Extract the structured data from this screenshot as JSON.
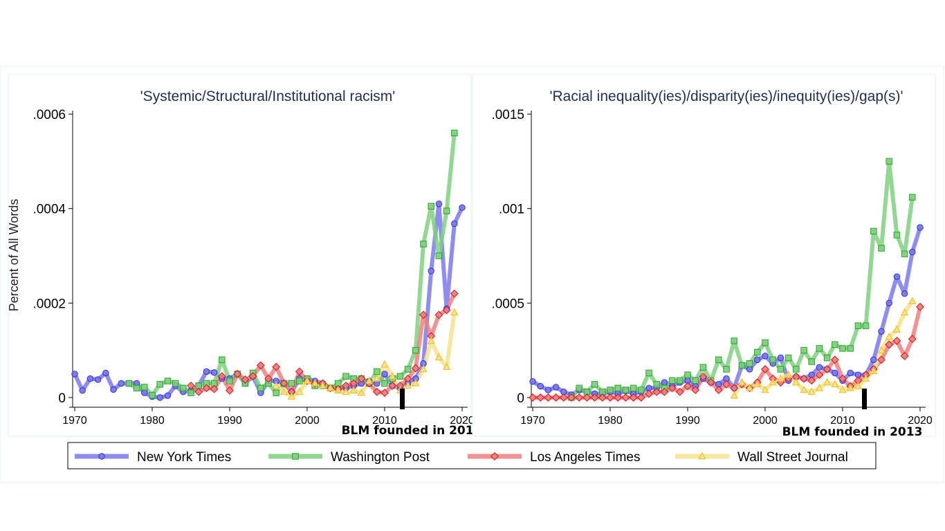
{
  "colors": {
    "nyt": "#7b78f0",
    "wp": "#7fd17f",
    "lat": "#f07f7f",
    "wsj": "#f9e08c",
    "nyt_marker": "#3438d4",
    "wp_marker": "#2fa62f",
    "lat_marker": "#dc1c1c",
    "wsj_marker": "#e8c420"
  },
  "annotation": {
    "blm_label": "BLM founded in 2013",
    "blm_year": 2013
  },
  "y_axis_title": "Percent of All Words",
  "legend": [
    "New York Times",
    "Washington Post",
    "Los Angeles Times",
    "Wall Street Journal"
  ],
  "chart_data": [
    {
      "type": "line",
      "title": "'Systemic/Structural/Institutional racism'",
      "ylabel": "Percent of All Words",
      "xlim": [
        1970,
        2020
      ],
      "ylim": [
        0,
        0.0006
      ],
      "x_ticks": [
        1970,
        1980,
        1990,
        2000,
        2010,
        2020
      ],
      "x_tick_labels": [
        "1970",
        "1980",
        "1990",
        "2000",
        "2010",
        "2020"
      ],
      "y_ticks": [
        0,
        0.0002,
        0.0004,
        0.0006
      ],
      "y_tick_labels": [
        "0",
        ".0002",
        ".0004",
        ".0006"
      ],
      "legend_position": "bottom",
      "series": [
        {
          "name": "New York Times",
          "marker": "circle",
          "start_year": 1970,
          "values": [
            5e-05,
            1.5e-05,
            4e-05,
            3.8e-05,
            5.2e-05,
            1.7e-05,
            3e-05,
            3e-05,
            3e-05,
            1e-05,
            2e-06,
            0.0,
            4e-06,
            2.5e-05,
            1.2e-05,
            1.5e-05,
            2.5e-05,
            5.5e-05,
            5.3e-05,
            4e-05,
            4e-05,
            5e-05,
            3e-05,
            4.5e-05,
            1e-05,
            3.5e-05,
            3.5e-05,
            3e-05,
            1.2e-05,
            4e-05,
            4e-05,
            3.5e-05,
            3e-05,
            2e-05,
            1.8e-05,
            2e-05,
            2.5e-05,
            3e-05,
            3.5e-05,
            3e-05,
            5e-05,
            2.5e-05,
            2e-05,
            3e-05,
            4e-05,
            7.2e-05,
            0.000268,
            0.00041,
            0.000188,
            0.000368,
            0.000402
          ]
        },
        {
          "name": "Washington Post",
          "marker": "square",
          "start_year": 1977,
          "values": [
            3e-05,
            2e-05,
            2.2e-05,
            5e-06,
            2.8e-05,
            3.5e-05,
            3e-05,
            2e-05,
            1e-05,
            2.5e-05,
            3e-05,
            3e-05,
            8e-05,
            3.5e-05,
            5e-05,
            3e-05,
            5.2e-05,
            2e-05,
            3e-05,
            1e-05,
            3e-05,
            3e-05,
            3.5e-05,
            4e-05,
            2.5e-05,
            2.5e-05,
            2e-05,
            3e-05,
            4.5e-05,
            4e-05,
            4e-05,
            3e-05,
            5.5e-05,
            3e-05,
            4e-05,
            4.5e-05,
            6e-05,
            0.0001,
            0.000325,
            0.000405,
            0.0003,
            0.000395,
            0.00056
          ]
        },
        {
          "name": "Los Angeles Times",
          "marker": "diamond",
          "start_year": 1985,
          "values": [
            2.5e-05,
            1.2e-05,
            2e-05,
            1.8e-05,
            4.5e-05,
            1.5e-05,
            5e-05,
            3.8e-05,
            4.5e-05,
            6.8e-05,
            4e-05,
            6.5e-05,
            3e-05,
            1.2e-05,
            5.5e-05,
            3.5e-05,
            3e-05,
            3e-05,
            2e-05,
            1.8e-05,
            2.5e-05,
            3e-05,
            4e-05,
            3e-05,
            1.2e-05,
            1e-05,
            2.5e-05,
            2.5e-05,
            4e-05,
            6.2e-05,
            0.000175,
            0.00013,
            0.000175,
            0.000185,
            0.00022
          ]
        },
        {
          "name": "Wall Street Journal",
          "marker": "triangle",
          "start_year": 1996,
          "values": [
            2.5e-05,
            1.2e-05,
            2e-06,
            1.2e-05,
            3.5e-05,
            3e-05,
            2.5e-05,
            2e-05,
            1.5e-05,
            1.2e-05,
            1.5e-05,
            1e-05,
            3.5e-05,
            4e-05,
            7e-05,
            4.5e-05,
            1.5e-05,
            2.5e-05,
            3e-05,
            6e-05,
            0.00012,
            8.5e-05,
            6.5e-05,
            0.00018
          ]
        }
      ]
    },
    {
      "type": "line",
      "title": "'Racial inequality(ies)/disparity(ies)/inequity(ies)/gap(s)'",
      "ylabel": "",
      "xlim": [
        1970,
        2020
      ],
      "ylim": [
        0,
        0.0015
      ],
      "x_ticks": [
        1970,
        1980,
        1990,
        2000,
        2010,
        2020
      ],
      "x_tick_labels": [
        "1970",
        "1980",
        "1990",
        "2000",
        "2010",
        "2020"
      ],
      "y_ticks": [
        0,
        0.0005,
        0.001,
        0.0015
      ],
      "y_tick_labels": [
        "0",
        ".0005",
        ".001",
        ".0015"
      ],
      "legend_position": "bottom",
      "series": [
        {
          "name": "New York Times",
          "marker": "circle",
          "start_year": 1970,
          "values": [
            8.5e-05,
            6e-05,
            4e-05,
            5.5e-05,
            3e-05,
            1.5e-05,
            4e-05,
            3e-05,
            2e-05,
            2e-05,
            3e-05,
            2e-05,
            3.5e-05,
            2e-05,
            3e-05,
            5e-05,
            5e-05,
            8e-05,
            6e-05,
            8e-05,
            9e-05,
            6e-05,
            0.0001,
            8e-05,
            7e-05,
            0.0001,
            5e-05,
            0.00017,
            0.00015,
            0.0002,
            0.00022,
            0.00018,
            0.00021,
            9e-05,
            0.00011,
            0.0001,
            0.00012,
            0.00016,
            0.00015,
            0.00013,
            9e-05,
            0.00013,
            0.00012,
            0.00012,
            0.0002,
            0.00035,
            0.0005,
            0.00064,
            0.00055,
            0.00077,
            0.0009
          ]
        },
        {
          "name": "Washington Post",
          "marker": "square",
          "start_year": 1975,
          "values": [
            0.0,
            5e-05,
            3e-05,
            7e-05,
            3e-05,
            4e-05,
            5e-05,
            4e-05,
            5e-05,
            4e-05,
            0.00013,
            7e-05,
            5e-05,
            9e-05,
            9e-05,
            0.00012,
            9e-05,
            0.00016,
            9e-05,
            0.0002,
            0.00015,
            0.0003,
            0.00017,
            0.00018,
            0.00024,
            0.00029,
            0.0002,
            0.00015,
            0.00021,
            0.00015,
            0.00025,
            0.00019,
            0.00026,
            0.00021,
            0.00028,
            0.00026,
            0.00026,
            0.00038,
            0.00038,
            0.00088,
            0.00079,
            0.00125,
            0.00086,
            0.00076,
            0.00106
          ]
        },
        {
          "name": "Los Angeles Times",
          "marker": "diamond",
          "start_year": 1970,
          "values": [
            0.0,
            0.0,
            0.0,
            0.0,
            0.0,
            0.0,
            0.0,
            0.0,
            0.0,
            0.0,
            0.0,
            0.0,
            0.0,
            0.0,
            0.0,
            2e-05,
            3e-05,
            3e-05,
            5e-05,
            3e-05,
            6e-05,
            4e-05,
            0.00011,
            8e-05,
            4e-05,
            7e-05,
            5e-05,
            7e-05,
            5e-05,
            8e-05,
            0.00015,
            0.0001,
            8e-05,
            0.0001,
            0.00011,
            0.0001,
            9e-05,
            0.00012,
            0.00015,
            0.0002,
            0.0001,
            6e-05,
            9e-05,
            0.00012,
            0.00015,
            0.0002,
            0.00028,
            0.0003,
            0.00022,
            0.00031,
            0.00048
          ]
        },
        {
          "name": "Wall Street Journal",
          "marker": "triangle",
          "start_year": 1996,
          "values": [
            1e-05,
            8e-05,
            5e-05,
            7e-05,
            4e-05,
            8e-05,
            0.0001,
            0.00012,
            8e-05,
            4e-05,
            3e-05,
            5e-05,
            8e-05,
            7e-05,
            4e-05,
            5e-05,
            6e-05,
            0.0001,
            0.00014,
            0.00025,
            0.00032,
            0.00036,
            0.00045,
            0.00051
          ]
        }
      ]
    }
  ]
}
